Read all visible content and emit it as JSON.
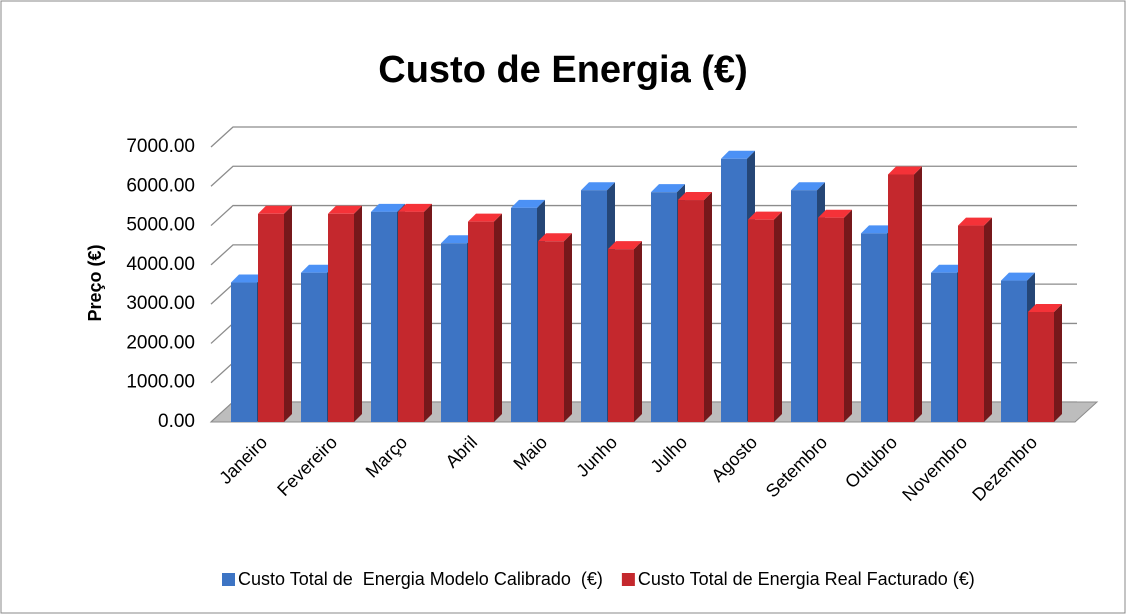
{
  "chart_data": {
    "type": "bar3d",
    "title": "Custo de Energia (€)",
    "y_label": "Preço (€)",
    "categories": [
      "Janeiro",
      "Fevereiro",
      "Março",
      "Abril",
      "Maio",
      "Junho",
      "Julho",
      "Agosto",
      "Setembro",
      "Outubro",
      "Novembro",
      "Dezembro"
    ],
    "series": [
      {
        "name": "Custo Total de  Energia Modelo Calibrado  (€)",
        "color": "#3d74c4",
        "values": [
          3550,
          3800,
          5350,
          4550,
          5450,
          5900,
          5850,
          6700,
          5900,
          4800,
          3800,
          3600
        ]
      },
      {
        "name": "Custo Total de Energia Real Facturado (€)",
        "color": "#c4282d",
        "values": [
          5300,
          5300,
          5350,
          5100,
          4600,
          4400,
          5650,
          5150,
          5200,
          6300,
          5000,
          2800
        ]
      }
    ],
    "ylim": [
      0,
      7000
    ],
    "yticks": [
      {
        "value": 0,
        "label": "0.00"
      },
      {
        "value": 1000,
        "label": "1000.00"
      },
      {
        "value": 2000,
        "label": "2000.00"
      },
      {
        "value": 3000,
        "label": "3000.00"
      },
      {
        "value": 4000,
        "label": "4000.00"
      },
      {
        "value": 5000,
        "label": "5000.00"
      },
      {
        "value": 6000,
        "label": "6000.00"
      },
      {
        "value": 7000,
        "label": "7000.00"
      }
    ],
    "grid": true,
    "legend": "bottom"
  }
}
